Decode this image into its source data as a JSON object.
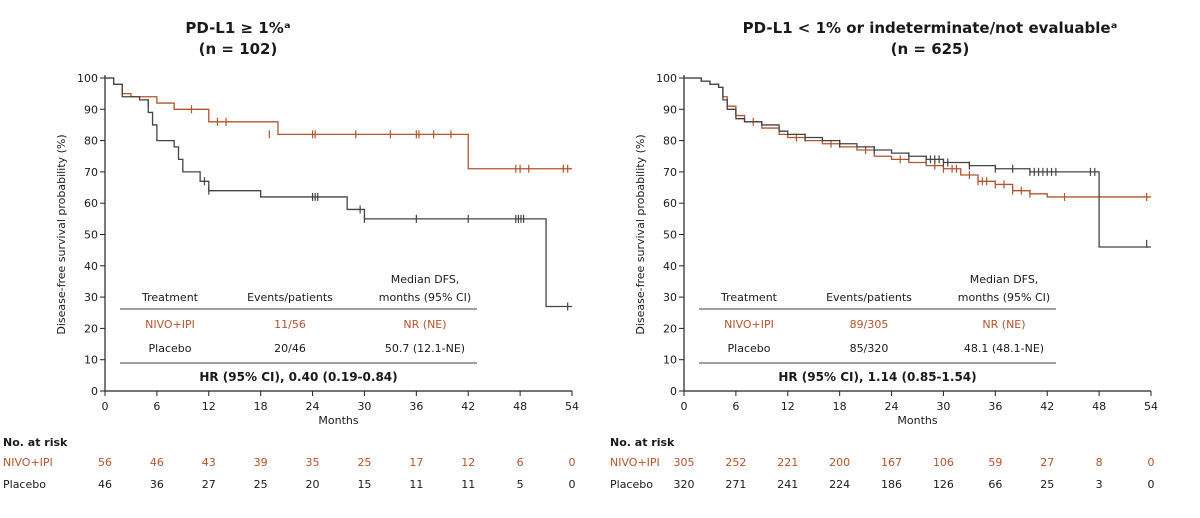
{
  "colors": {
    "nivo": "#b5532c",
    "placebo": "#444444",
    "axis": "#222222",
    "text": "#1a1a1a"
  },
  "risk_label": "No. at risk",
  "chart_data": [
    {
      "type": "line",
      "step": true,
      "title": "PD-L1 ≥ 1%ᵃ",
      "subtitle": "(n = 102)",
      "xlabel": "Months",
      "ylabel": "Disease-free survival probability (%)",
      "xlim": [
        0,
        54
      ],
      "ylim": [
        0,
        100
      ],
      "x_ticks": [
        0,
        6,
        12,
        18,
        24,
        30,
        36,
        42,
        48,
        54
      ],
      "y_ticks": [
        0,
        10,
        20,
        30,
        40,
        50,
        60,
        70,
        80,
        90,
        100
      ],
      "grid": false,
      "series": [
        {
          "name": "NIVO+IPI",
          "color": "#b5532c",
          "x": [
            0,
            1,
            2,
            3,
            6,
            8,
            12,
            20,
            42,
            54
          ],
          "y": [
            100,
            98,
            95,
            94,
            92,
            90,
            86,
            82,
            71,
            71
          ],
          "censor_x": [
            5,
            10,
            13,
            14,
            19,
            24,
            24.3,
            29,
            33,
            36,
            36.3,
            38,
            40,
            47.5,
            48,
            49,
            53,
            53.5
          ],
          "censor_y": [
            92,
            90,
            86,
            86,
            82,
            82,
            82,
            82,
            82,
            82,
            82,
            82,
            82,
            71,
            71,
            71,
            71,
            71
          ]
        },
        {
          "name": "Placebo",
          "color": "#444444",
          "x": [
            0,
            1,
            2,
            4,
            5,
            5.5,
            6,
            8,
            8.5,
            9,
            11,
            12,
            18,
            28,
            30,
            51,
            54
          ],
          "y": [
            100,
            98,
            94,
            93,
            89,
            85,
            80,
            78,
            74,
            70,
            67,
            64,
            62,
            58,
            55,
            27,
            27
          ],
          "censor_x": [
            11.5,
            12,
            24,
            24.3,
            24.6,
            29.5,
            30,
            36,
            42,
            47.5,
            47.8,
            48.1,
            48.4,
            53.5
          ],
          "censor_y": [
            67,
            64,
            62,
            62,
            62,
            58,
            55,
            55,
            55,
            55,
            55,
            55,
            55,
            27
          ]
        }
      ],
      "table": {
        "headers": [
          "Treatment",
          "Events/patients",
          "Median DFS,\nmonths (95% CI)"
        ],
        "rows": [
          [
            "NIVO+IPI",
            "11/56",
            "NR (NE)"
          ],
          [
            "Placebo",
            "20/46",
            "50.7 (12.1-NE)"
          ]
        ],
        "hr": "HR (95% CI), 0.40 (0.19-0.84)"
      },
      "at_risk": {
        "times": [
          0,
          6,
          12,
          18,
          24,
          30,
          36,
          42,
          48,
          54
        ],
        "NIVO+IPI": [
          56,
          46,
          43,
          39,
          35,
          25,
          17,
          12,
          6,
          0
        ],
        "Placebo": [
          46,
          36,
          27,
          25,
          20,
          15,
          11,
          11,
          5,
          0
        ]
      }
    },
    {
      "type": "line",
      "step": true,
      "title": "PD-L1 < 1% or indeterminate/not evaluableᵃ",
      "subtitle": "(n = 625)",
      "xlabel": "Months",
      "ylabel": "Disease-free survival probability (%)",
      "xlim": [
        0,
        54
      ],
      "ylim": [
        0,
        100
      ],
      "x_ticks": [
        0,
        6,
        12,
        18,
        24,
        30,
        36,
        42,
        48,
        54
      ],
      "y_ticks": [
        0,
        10,
        20,
        30,
        40,
        50,
        60,
        70,
        80,
        90,
        100
      ],
      "grid": false,
      "series": [
        {
          "name": "NIVO+IPI",
          "color": "#b5532c",
          "x": [
            0,
            2,
            3,
            4,
            4.5,
            5,
            6,
            7,
            9,
            11,
            12,
            14,
            16,
            18,
            20,
            22,
            24,
            26,
            28,
            30,
            32,
            34,
            36,
            38,
            40,
            42,
            48,
            54
          ],
          "y": [
            100,
            99,
            98,
            97,
            94,
            91,
            88,
            86,
            84,
            82,
            81,
            80,
            79,
            78,
            77,
            75,
            74,
            73,
            72,
            71,
            69,
            67,
            66,
            64,
            63,
            62,
            62,
            62
          ],
          "censor_x": [
            8,
            13,
            17,
            21,
            25,
            29,
            30,
            31,
            31.5,
            33,
            34,
            34.5,
            35,
            36,
            37,
            38,
            39,
            40,
            44,
            53.5
          ],
          "censor_y": [
            86,
            81,
            79,
            77,
            74,
            72,
            71,
            71,
            71,
            69,
            67,
            67,
            67,
            66,
            66,
            64,
            64,
            63,
            62,
            62
          ]
        },
        {
          "name": "Placebo",
          "color": "#444444",
          "x": [
            0,
            2,
            3,
            4,
            4.5,
            5,
            6,
            7,
            9,
            11,
            12,
            14,
            16,
            18,
            20,
            22,
            24,
            26,
            28,
            30,
            33,
            36,
            40,
            48,
            54
          ],
          "y": [
            100,
            99,
            98,
            97,
            93,
            90,
            87,
            86,
            85,
            83,
            82,
            81,
            80,
            79,
            78,
            77,
            76,
            75,
            74,
            73,
            72,
            71,
            70,
            46,
            46
          ],
          "censor_x": [
            14,
            18,
            22,
            26,
            28,
            28.5,
            29,
            29.5,
            30,
            30.5,
            33,
            36,
            38,
            40,
            40.5,
            41,
            41.5,
            42,
            42.5,
            43,
            47,
            47.5,
            53.5
          ],
          "censor_y": [
            81,
            79,
            77,
            75,
            74,
            74,
            74,
            74,
            73,
            73,
            72,
            71,
            71,
            70,
            70,
            70,
            70,
            70,
            70,
            70,
            70,
            70,
            47
          ]
        }
      ],
      "table": {
        "headers": [
          "Treatment",
          "Events/patients",
          "Median DFS,\nmonths (95% CI)"
        ],
        "rows": [
          [
            "NIVO+IPI",
            "89/305",
            "NR (NE)"
          ],
          [
            "Placebo",
            "85/320",
            "48.1 (48.1-NE)"
          ]
        ],
        "hr": "HR (95% CI), 1.14 (0.85-1.54)"
      },
      "at_risk": {
        "times": [
          0,
          6,
          12,
          18,
          24,
          30,
          36,
          42,
          48,
          54
        ],
        "NIVO+IPI": [
          305,
          252,
          221,
          200,
          167,
          106,
          59,
          27,
          8,
          0
        ],
        "Placebo": [
          320,
          271,
          241,
          224,
          186,
          126,
          66,
          25,
          3,
          0
        ]
      }
    }
  ]
}
